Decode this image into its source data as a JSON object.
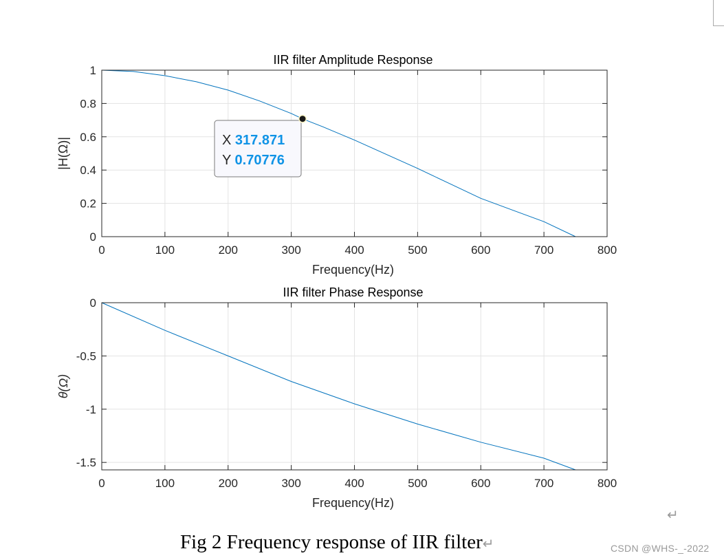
{
  "figure": {
    "caption": "Fig 2 Frequency response of IIR filter",
    "caption_return_mark": "↵",
    "paragraph_mark": "↵",
    "watermark": "CSDN @WHS-_-2022",
    "line_color": "#0072bd",
    "datatip_color": "#0f93e6"
  },
  "chart_data": [
    {
      "type": "line",
      "title": "IIR filter Amplitude Response",
      "xlabel": "Frequency(Hz)",
      "ylabel": "|H(Ω)|",
      "xlim": [
        0,
        800
      ],
      "ylim": [
        0,
        1
      ],
      "xticks": [
        "0",
        "100",
        "200",
        "300",
        "400",
        "500",
        "600",
        "700",
        "800"
      ],
      "yticks": [
        "0",
        "0.2",
        "0.4",
        "0.6",
        "0.8",
        "1"
      ],
      "grid": true,
      "x": [
        0,
        50,
        100,
        150,
        200,
        250,
        300,
        317.871,
        350,
        400,
        450,
        500,
        550,
        600,
        650,
        700,
        750
      ],
      "y": [
        1.0,
        0.992,
        0.967,
        0.93,
        0.88,
        0.815,
        0.74,
        0.70776,
        0.66,
        0.58,
        0.495,
        0.41,
        0.32,
        0.23,
        0.16,
        0.09,
        0.0
      ],
      "datatip": {
        "x_label": "X",
        "x_value": "317.871",
        "y_label": "Y",
        "y_value": "0.70776",
        "x": 317.871,
        "y": 0.70776
      }
    },
    {
      "type": "line",
      "title": "IIR filter Phase Response",
      "xlabel": "Frequency(Hz)",
      "ylabel": "θ(Ω)",
      "xlim": [
        0,
        800
      ],
      "ylim": [
        -1.57,
        0
      ],
      "xticks": [
        "0",
        "100",
        "200",
        "300",
        "400",
        "500",
        "600",
        "700",
        "800"
      ],
      "yticks": [
        "-1.5",
        "-1",
        "-0.5",
        "0"
      ],
      "grid": true,
      "x": [
        0,
        100,
        200,
        300,
        400,
        500,
        600,
        700,
        750
      ],
      "y": [
        0,
        -0.26,
        -0.5,
        -0.74,
        -0.95,
        -1.14,
        -1.31,
        -1.46,
        -1.57
      ]
    }
  ]
}
